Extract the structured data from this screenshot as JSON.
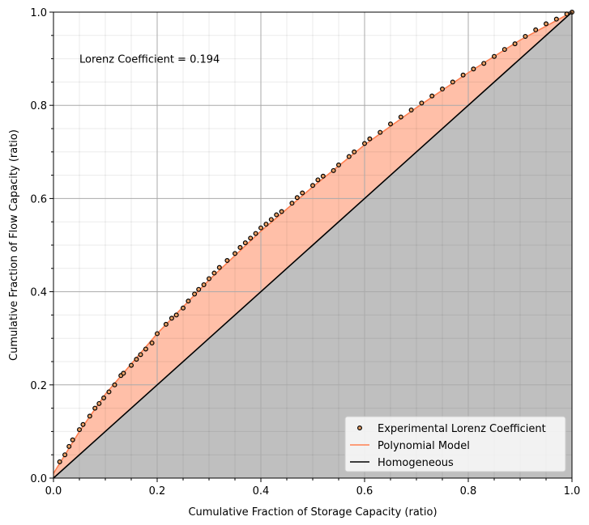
{
  "chart_data": {
    "type": "scatter",
    "xlabel": "Cumulative Fraction of Storage Capacity (ratio)",
    "ylabel": "Cumulative Fraction of Flow Capacity (ratio)",
    "annotation": {
      "text": "Lorenz Coefficient = 0.194",
      "x": 0.05,
      "y": 0.9
    },
    "xlim": [
      0,
      1
    ],
    "ylim": [
      0,
      1
    ],
    "xticks": [
      {
        "value": 0,
        "label": "0.0"
      },
      0.2,
      0.4,
      0.6,
      0.8,
      {
        "value": 1,
        "label": "1.0"
      }
    ],
    "yticks": [
      {
        "value": 0,
        "label": "0.0"
      },
      0.2,
      0.4,
      0.6,
      0.8,
      {
        "value": 1,
        "label": "1.0"
      }
    ],
    "minor_ticks": [
      0.05,
      0.1,
      0.15,
      0.25,
      0.3,
      0.35,
      0.45,
      0.5,
      0.55,
      0.65,
      0.7,
      0.75,
      0.85,
      0.9,
      0.95
    ],
    "grid": true,
    "legend": "lower right",
    "series": [
      {
        "name": "Experimental Lorenz Coefficient",
        "type": "scatter",
        "color": "#e8a066",
        "x": [
          0.012,
          0.022,
          0.03,
          0.037,
          0.05,
          0.057,
          0.07,
          0.08,
          0.088,
          0.097,
          0.107,
          0.118,
          0.13,
          0.135,
          0.15,
          0.16,
          0.168,
          0.178,
          0.19,
          0.2,
          0.217,
          0.228,
          0.237,
          0.25,
          0.26,
          0.272,
          0.28,
          0.29,
          0.3,
          0.31,
          0.32,
          0.335,
          0.35,
          0.36,
          0.37,
          0.38,
          0.39,
          0.4,
          0.41,
          0.42,
          0.43,
          0.44,
          0.46,
          0.47,
          0.48,
          0.5,
          0.51,
          0.52,
          0.54,
          0.55,
          0.57,
          0.58,
          0.6,
          0.61,
          0.63,
          0.65,
          0.67,
          0.69,
          0.71,
          0.73,
          0.75,
          0.77,
          0.79,
          0.81,
          0.83,
          0.85,
          0.87,
          0.89,
          0.91,
          0.93,
          0.95,
          0.97,
          0.99,
          1.0
        ],
        "values": [
          0.035,
          0.05,
          0.068,
          0.082,
          0.104,
          0.115,
          0.133,
          0.15,
          0.16,
          0.172,
          0.185,
          0.2,
          0.22,
          0.225,
          0.242,
          0.255,
          0.265,
          0.277,
          0.29,
          0.31,
          0.33,
          0.343,
          0.35,
          0.365,
          0.38,
          0.395,
          0.405,
          0.415,
          0.428,
          0.44,
          0.452,
          0.467,
          0.482,
          0.495,
          0.505,
          0.515,
          0.525,
          0.537,
          0.545,
          0.555,
          0.565,
          0.572,
          0.59,
          0.602,
          0.612,
          0.628,
          0.64,
          0.648,
          0.66,
          0.672,
          0.69,
          0.7,
          0.718,
          0.728,
          0.742,
          0.76,
          0.775,
          0.79,
          0.805,
          0.82,
          0.835,
          0.85,
          0.865,
          0.878,
          0.89,
          0.905,
          0.92,
          0.932,
          0.948,
          0.962,
          0.975,
          0.985,
          0.996,
          1.0
        ]
      },
      {
        "name": "Polynomial Model",
        "type": "line",
        "color": "#ff7f50",
        "fill_color": "#ffbfa8",
        "x": [
          0,
          0.05,
          0.1,
          0.2,
          0.3,
          0.4,
          0.5,
          0.6,
          0.7,
          0.8,
          0.9,
          1.0
        ],
        "values": [
          0.01,
          0.1,
          0.18,
          0.31,
          0.425,
          0.53,
          0.625,
          0.715,
          0.795,
          0.87,
          0.94,
          1.0
        ]
      },
      {
        "name": "Homogeneous",
        "type": "line",
        "color": "#000000",
        "fill_color": "#bfbfbf",
        "x": [
          0,
          1
        ],
        "values": [
          0,
          1
        ]
      }
    ]
  }
}
